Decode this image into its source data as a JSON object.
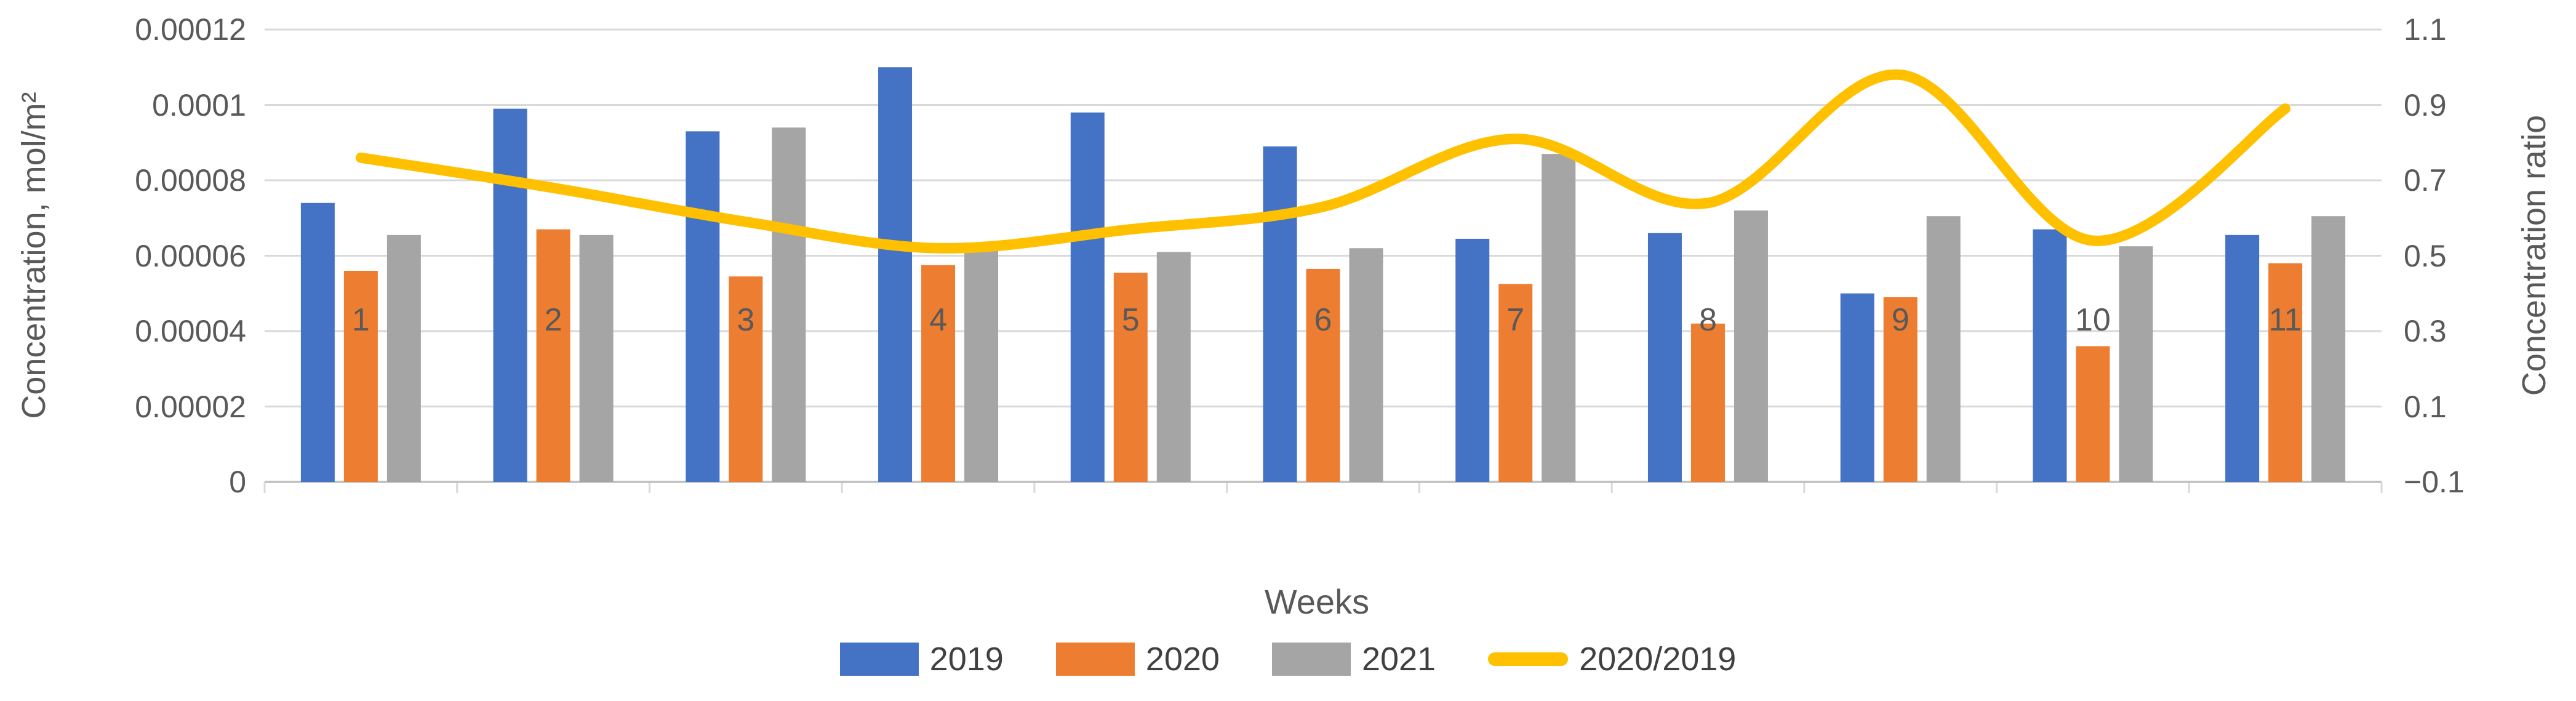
{
  "chart_data": {
    "type": "bar",
    "subtype": "grouped-bars-with-line-overlay",
    "categories": [
      "1",
      "2",
      "3",
      "4",
      "5",
      "6",
      "7",
      "8",
      "9",
      "10",
      "11"
    ],
    "series": [
      {
        "name": "2019",
        "type": "bar",
        "axis": "left",
        "color": "#4472C4",
        "values": [
          7.4e-05,
          9.9e-05,
          9.3e-05,
          0.00011,
          9.8e-05,
          8.9e-05,
          6.45e-05,
          6.6e-05,
          5e-05,
          6.7e-05,
          6.55e-05
        ]
      },
      {
        "name": "2020",
        "type": "bar",
        "axis": "left",
        "color": "#ED7D31",
        "values": [
          5.6e-05,
          6.7e-05,
          5.45e-05,
          5.75e-05,
          5.55e-05,
          5.65e-05,
          5.25e-05,
          4.2e-05,
          4.9e-05,
          3.6e-05,
          5.8e-05
        ]
      },
      {
        "name": "2021",
        "type": "bar",
        "axis": "left",
        "color": "#A5A5A5",
        "values": [
          6.55e-05,
          6.55e-05,
          9.4e-05,
          6.35e-05,
          6.1e-05,
          6.2e-05,
          8.7e-05,
          7.2e-05,
          7.05e-05,
          6.25e-05,
          7.05e-05
        ]
      },
      {
        "name": "2020/2019",
        "type": "line",
        "axis": "right",
        "color": "#FFC000",
        "values": [
          0.76,
          0.68,
          0.59,
          0.52,
          0.57,
          0.63,
          0.81,
          0.64,
          0.98,
          0.54,
          0.89
        ]
      }
    ],
    "xlabel": "Weeks",
    "y_left": {
      "label": "Concentration, mol/m²",
      "min": 0,
      "max": 0.00012,
      "tick_labels": [
        "0.00012",
        "0.0001",
        "0.00008",
        "0.00006",
        "0.00004",
        "0.00002",
        "0"
      ]
    },
    "y_right": {
      "label": "Concentration ratio",
      "min": -0.1,
      "max": 1.1,
      "tick_labels": [
        "1.1",
        "0.9",
        "0.7",
        "0.5",
        "0.3",
        "0.1",
        "−0.1"
      ]
    },
    "grid": true,
    "legend_position": "bottom",
    "colors": {
      "gridline": "#D9D9D9",
      "axis_line": "#BFBFBF",
      "tick_text": "#595959",
      "legend_text": "#404040",
      "background": "#FFFFFF"
    }
  }
}
